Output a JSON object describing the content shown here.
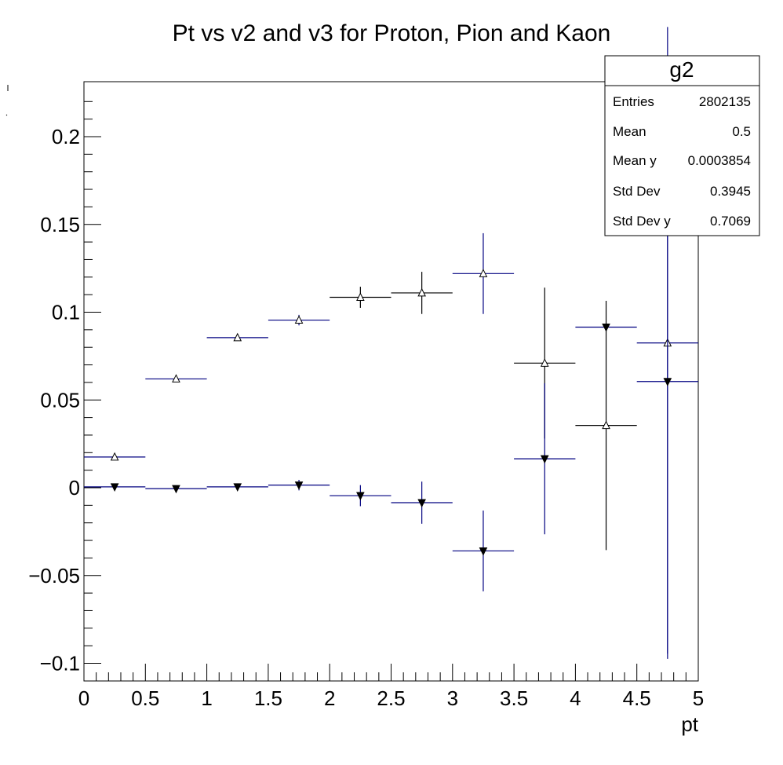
{
  "chart_data": {
    "type": "scatter",
    "title": "Pt vs v2 and v3 for Proton, Pion and Kaon",
    "xlabel": "pt",
    "ylabel": "",
    "xlim": [
      0,
      5
    ],
    "ylim": [
      -0.11,
      0.23
    ],
    "x_ticks": [
      {
        "value": 0,
        "label": "0"
      },
      {
        "value": 0.5,
        "label": "0.5"
      },
      {
        "value": 1,
        "label": "1"
      },
      {
        "value": 1.5,
        "label": "1.5"
      },
      {
        "value": 2,
        "label": "2"
      },
      {
        "value": 2.5,
        "label": "2.5"
      },
      {
        "value": 3,
        "label": "3"
      },
      {
        "value": 3.5,
        "label": "3.5"
      },
      {
        "value": 4,
        "label": "4"
      },
      {
        "value": 4.5,
        "label": "4.5"
      },
      {
        "value": 5,
        "label": "5"
      }
    ],
    "y_ticks": [
      {
        "value": -0.1,
        "label": "−0.1"
      },
      {
        "value": -0.05,
        "label": "−0.05"
      },
      {
        "value": 0,
        "label": "0"
      },
      {
        "value": 0.05,
        "label": "0.05"
      },
      {
        "value": 0.1,
        "label": "0.1"
      },
      {
        "value": 0.15,
        "label": "0.15"
      },
      {
        "value": 0.2,
        "label": "0.2"
      }
    ],
    "series": [
      {
        "name": "v2",
        "marker": "open-triangle-up",
        "points": [
          {
            "x": 0.25,
            "y": 0.0175,
            "xerr": 0.25,
            "yerr": 0.001,
            "color": "#000080"
          },
          {
            "x": 0.75,
            "y": 0.062,
            "xerr": 0.25,
            "yerr": 0.001,
            "color": "#000080"
          },
          {
            "x": 1.25,
            "y": 0.0855,
            "xerr": 0.25,
            "yerr": 0.001,
            "color": "#000080"
          },
          {
            "x": 1.75,
            "y": 0.0955,
            "xerr": 0.25,
            "yerr": 0.003,
            "color": "#000080"
          },
          {
            "x": 2.25,
            "y": 0.1085,
            "xerr": 0.25,
            "yerr": 0.006,
            "color": "#000000"
          },
          {
            "x": 2.75,
            "y": 0.111,
            "xerr": 0.25,
            "yerr": 0.012,
            "color": "#000000"
          },
          {
            "x": 3.25,
            "y": 0.122,
            "xerr": 0.25,
            "yerr": 0.023,
            "color": "#000080"
          },
          {
            "x": 3.75,
            "y": 0.071,
            "xerr": 0.25,
            "yerr": 0.043,
            "color": "#000000"
          },
          {
            "x": 4.25,
            "y": 0.0355,
            "xerr": 0.25,
            "yerr": 0.071,
            "color": "#000000"
          },
          {
            "x": 4.75,
            "y": 0.0825,
            "xerr": 0.25,
            "yerr": 0.18,
            "color": "#000080"
          }
        ]
      },
      {
        "name": "v3",
        "marker": "filled-triangle-down",
        "points": [
          {
            "x": 0.25,
            "y": 0.0005,
            "xerr": 0.25,
            "yerr": 0.001,
            "color": "#000080"
          },
          {
            "x": 0.75,
            "y": -0.0005,
            "xerr": 0.25,
            "yerr": 0.001,
            "color": "#000080"
          },
          {
            "x": 1.25,
            "y": 0.0005,
            "xerr": 0.25,
            "yerr": 0.001,
            "color": "#000080"
          },
          {
            "x": 1.75,
            "y": 0.0015,
            "xerr": 0.25,
            "yerr": 0.003,
            "color": "#000080"
          },
          {
            "x": 2.25,
            "y": -0.0045,
            "xerr": 0.25,
            "yerr": 0.006,
            "color": "#000080"
          },
          {
            "x": 2.75,
            "y": -0.0085,
            "xerr": 0.25,
            "yerr": 0.012,
            "color": "#000080"
          },
          {
            "x": 3.25,
            "y": -0.036,
            "xerr": 0.25,
            "yerr": 0.023,
            "color": "#000080"
          },
          {
            "x": 3.75,
            "y": 0.0165,
            "xerr": 0.25,
            "yerr": 0.043,
            "color": "#000080"
          },
          {
            "x": 4.25,
            "y": 0.0915,
            "xerr": 0.25,
            "yerr": 0.001,
            "color": "#000080"
          },
          {
            "x": 4.75,
            "y": 0.0605,
            "xerr": 0.25,
            "yerr": 0.155,
            "color": "#000080"
          }
        ]
      }
    ],
    "stats_box": {
      "title": "g2",
      "position": "top-right",
      "rows": [
        {
          "label": "Entries",
          "value": "2802135"
        },
        {
          "label": "Mean",
          "value": "0.5"
        },
        {
          "label": "Mean y",
          "value": "0.0003854"
        },
        {
          "label": "Std Dev",
          "value": "0.3945"
        },
        {
          "label": "Std Dev y",
          "value": "0.7069"
        }
      ]
    }
  }
}
